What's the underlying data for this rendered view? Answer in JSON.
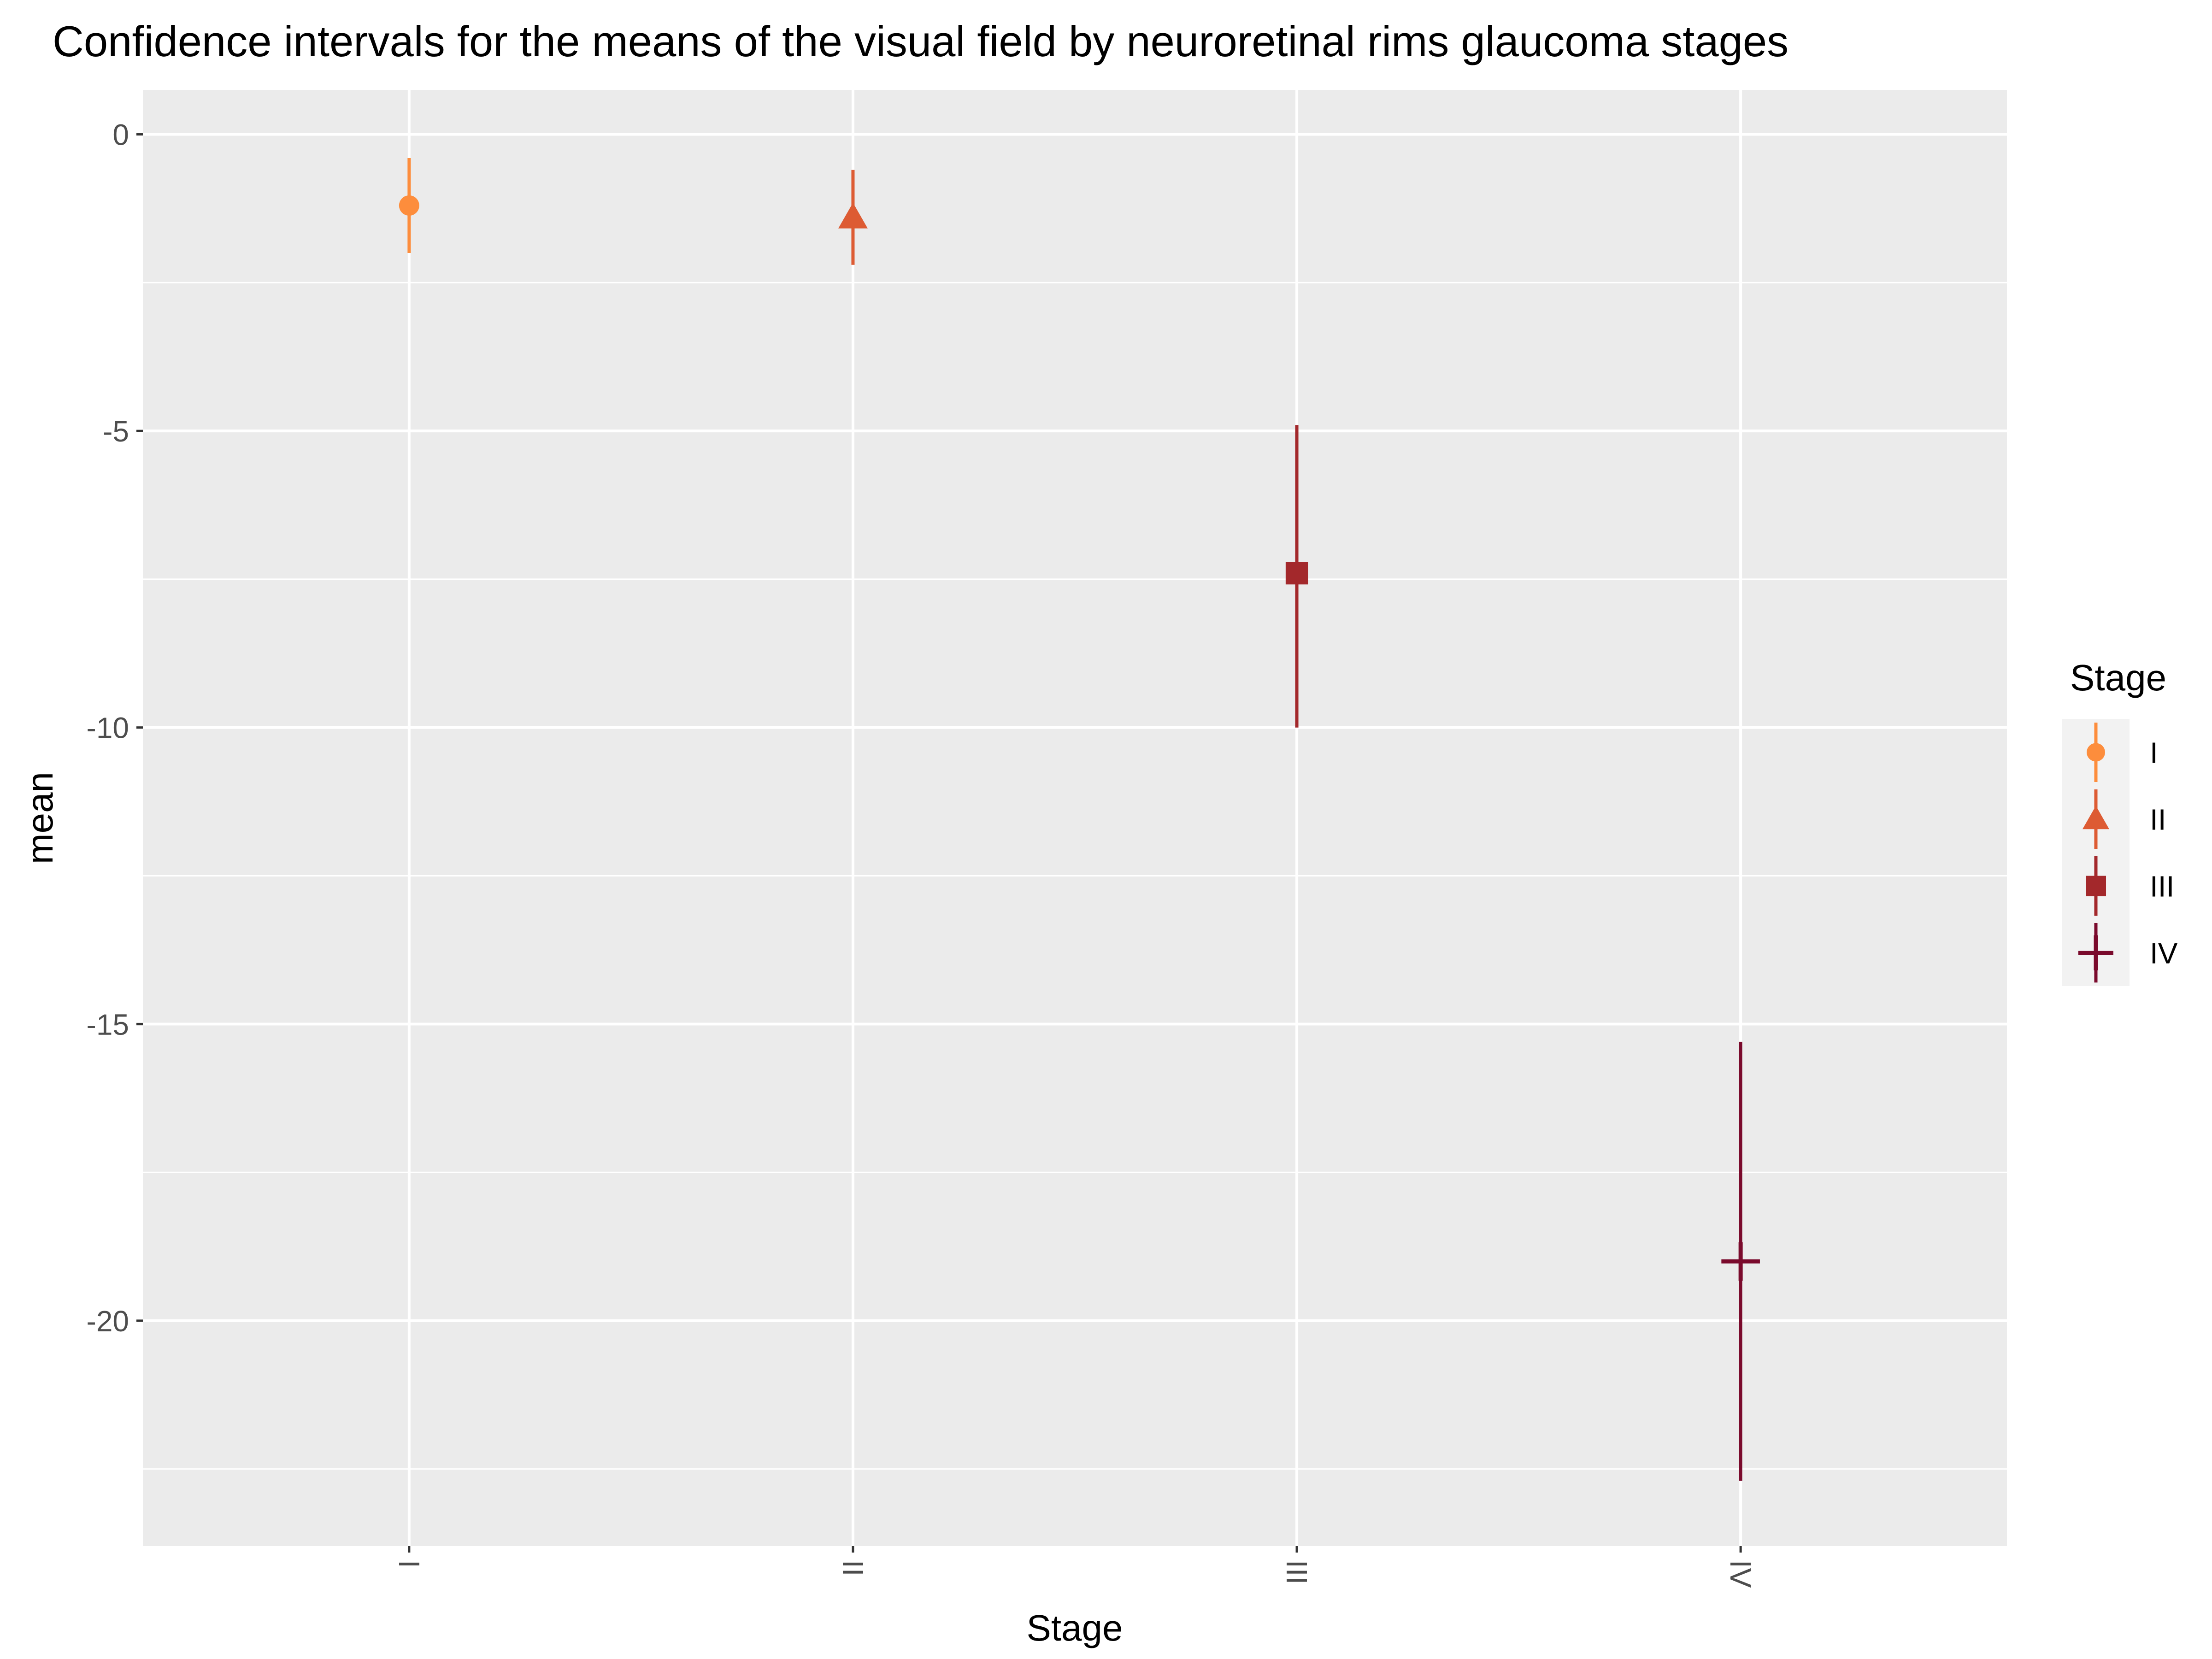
{
  "chart_data": {
    "type": "errorbar",
    "title": "Confidence intervals for the means of the visual field by neuroretinal rims glaucoma stages",
    "xlabel": "Stage",
    "ylabel": "mean",
    "categories": [
      "I",
      "II",
      "III",
      "IV"
    ],
    "ylim": [
      -23.8,
      0.75
    ],
    "yticks": [
      0,
      -5,
      -10,
      -15,
      -20
    ],
    "ytick_labels": [
      "0",
      "-5",
      "-10",
      "-15",
      "-20"
    ],
    "grid": true,
    "legend": {
      "title": "Stage",
      "placement": "right"
    },
    "series": [
      {
        "name": "I",
        "mean": -1.2,
        "lower": -2.0,
        "upper": -0.4,
        "shape": "circle",
        "color": "#fd8d3c"
      },
      {
        "name": "II",
        "mean": -1.4,
        "lower": -2.2,
        "upper": -0.6,
        "shape": "triangle",
        "color": "#dd5b33"
      },
      {
        "name": "III",
        "mean": -7.4,
        "lower": -10.0,
        "upper": -4.9,
        "shape": "square",
        "color": "#a3282b"
      },
      {
        "name": "IV",
        "mean": -19.0,
        "lower": -22.7,
        "upper": -15.3,
        "shape": "plus",
        "color": "#7a0a2c"
      }
    ]
  }
}
